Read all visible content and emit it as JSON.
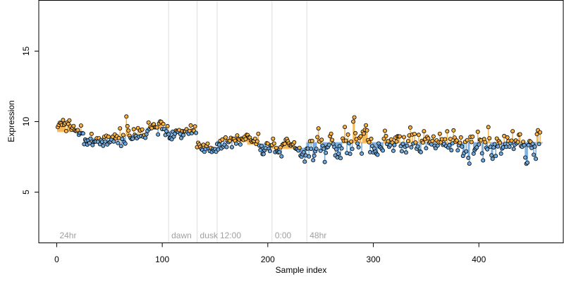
{
  "chart_data": {
    "type": "scatter",
    "title": "",
    "xlabel": "Sample index",
    "ylabel": "Expression",
    "xlim": [
      -17,
      480
    ],
    "ylim": [
      1.4,
      18.6
    ],
    "x_ticks": [
      0,
      100,
      200,
      300,
      400
    ],
    "y_ticks": [
      5,
      10,
      15
    ],
    "grid": false,
    "legend": "none",
    "regions": [
      {
        "label": "24hr",
        "start": 0
      },
      {
        "label": "dawn",
        "start": 106
      },
      {
        "label": "dusk",
        "start": 133
      },
      {
        "label": "12:00",
        "start": 152
      },
      {
        "label": "0:00",
        "start": 204
      },
      {
        "label": "48hr",
        "start": 237
      }
    ],
    "region_boundaries": [
      106,
      133,
      152,
      204,
      237
    ],
    "colors": {
      "above": "#f5b041",
      "below": "#6fa8dc",
      "segment_above": "#f0a830",
      "segment_below": "#5b8fd6",
      "boundary": "#dddddd",
      "axis": "#000000",
      "region_label": "#a0a0a0"
    },
    "segments": [
      {
        "start": 1,
        "end": 25,
        "level": 9.3
      },
      {
        "start": 26,
        "end": 64,
        "level": 8.8
      },
      {
        "start": 65,
        "end": 84,
        "level": 9.0
      },
      {
        "start": 85,
        "end": 105,
        "level": 9.5
      },
      {
        "start": 106,
        "end": 132,
        "level": 9.3
      },
      {
        "start": 133,
        "end": 151,
        "level": 8.1
      },
      {
        "start": 152,
        "end": 180,
        "level": 8.6
      },
      {
        "start": 181,
        "end": 203,
        "level": 8.4
      },
      {
        "start": 204,
        "end": 236,
        "level": 8.1
      },
      {
        "start": 237,
        "end": 460,
        "level": 8.5
      }
    ],
    "series": [
      {
        "values": [
          9.61,
          9.77,
          9.92,
          9.88,
          9.76,
          10.11,
          9.77,
          9.87,
          9.33,
          9.94,
          9.83,
          10.09,
          9.66,
          9.43,
          9.55,
          9.69,
          9.39,
          9.34,
          9.34,
          9.4,
          9.06,
          9.19,
          9.72,
          9.17,
          9.16,
          8.4,
          8.73,
          8.64,
          8.37,
          8.67,
          8.48,
          8.79,
          9.13,
          8.34,
          8.56,
          8.58,
          8.59,
          8.82,
          8.58,
          8.82,
          8.4,
          8.69,
          8.57,
          8.29,
          8.92,
          8.59,
          9.0,
          8.38,
          8.93,
          8.53,
          8.58,
          8.72,
          8.93,
          8.59,
          9.09,
          8.81,
          8.96,
          8.48,
          8.83,
          9.52,
          8.27,
          8.77,
          9.05,
          8.54,
          8.44,
          10.36,
          9.68,
          9.36,
          9.0,
          8.84,
          8.76,
          8.79,
          9.46,
          9.06,
          8.98,
          8.82,
          9.54,
          8.94,
          9.37,
          8.98,
          9.44,
          8.93,
          9.04,
          8.85,
          9.1,
          9.34,
          9.94,
          9.49,
          9.62,
          9.54,
          9.77,
          9.81,
          9.6,
          9.6,
          9.59,
          9.09,
          9.87,
          10.01,
          9.98,
          9.47,
          9.83,
          9.47,
          9.05,
          9.32,
          9.68,
          9.1,
          8.82,
          8.84,
          8.75,
          9.29,
          8.94,
          9.14,
          9.36,
          9.31,
          9.27,
          9.4,
          9.13,
          8.84,
          9.33,
          9.04,
          9.31,
          9.31,
          9.46,
          9.26,
          9.14,
          9.34,
          9.73,
          9.18,
          9.38,
          9.35,
          9.66,
          9.2,
          8.19,
          8.5,
          8.37,
          8.21,
          8.06,
          7.99,
          8.36,
          7.86,
          8.06,
          8.27,
          8.44,
          8.08,
          7.91,
          8.14,
          7.85,
          8.06,
          7.95,
          8.05,
          7.86,
          8.41,
          8.03,
          8.36,
          8.64,
          8.1,
          8.73,
          8.23,
          8.35,
          8.88,
          8.2,
          8.62,
          8.55,
          8.64,
          8.85,
          8.19,
          8.78,
          8.78,
          8.64,
          8.44,
          9.02,
          8.77,
          8.72,
          8.38,
          8.8,
          8.76,
          8.7,
          8.92,
          8.76,
          9.06,
          9.04,
          8.88,
          8.86,
          8.66,
          8.57,
          8.64,
          8.63,
          8.79,
          8.41,
          8.6,
          9.14,
          8.3,
          7.98,
          8.27,
          7.7,
          7.7,
          7.97,
          8.12,
          8.47,
          8.44,
          8.08,
          7.91,
          8.31,
          8.34,
          8.79,
          8.45,
          7.84,
          8.14,
          7.88,
          7.81,
          7.84,
          8.18,
          7.54,
          8.37,
          8.43,
          8.43,
          8.72,
          8.78,
          8.61,
          8.45,
          8.32,
          8.3,
          8.39,
          8.41,
          8.53,
          8.11,
          8.07,
          8.03,
          7.95,
          8.14,
          7.59,
          7.51,
          7.69,
          7.83,
          7.16,
          7.6,
          8.09,
          8.09,
          7.53,
          8.61,
          8.07,
          8.63,
          7.26,
          7.58,
          7.9,
          8.07,
          8.9,
          9.52,
          8.59,
          7.93,
          8.71,
          8.29,
          8.08,
          7.14,
          7.79,
          8.16,
          8.2,
          8.35,
          8.97,
          9.14,
          8.7,
          8.42,
          8.2,
          7.6,
          8.04,
          7.46,
          7.72,
          8.26,
          7.41,
          8.1,
          8.8,
          8.64,
          9.62,
          8.65,
          7.77,
          9.08,
          8.46,
          7.71,
          8.59,
          8.06,
          10.0,
          10.3,
          9.18,
          8.76,
          8.45,
          8.18,
          8.86,
          8.96,
          7.73,
          9.29,
          9.15,
          9.42,
          9.74,
          9.38,
          8.69,
          8.54,
          7.83,
          8.78,
          8.27,
          7.81,
          8.09,
          7.87,
          7.71,
          7.65,
          8.45,
          8.22,
          8.16,
          8.05,
          7.95,
          8.79,
          9.35,
          8.98,
          8.42,
          8.61,
          8.21,
          8.33,
          8.74,
          8.51,
          7.93,
          8.34,
          8.87,
          8.59,
          8.96,
          8.95,
          8.95,
          8.26,
          7.9,
          8.42,
          8.9,
          8.21,
          7.81,
          8.29,
          8.62,
          9.02,
          9.58,
          8.18,
          9.08,
          8.45,
          9.12,
          8.52,
          8.08,
          8.24,
          9.06,
          7.9,
          7.84,
          8.63,
          8.51,
          9.32,
          8.76,
          8.11,
          8.92,
          8.81,
          8.48,
          8.55,
          8.39,
          8.63,
          8.95,
          8.29,
          8.11,
          8.67,
          8.3,
          8.54,
          9.14,
          8.53,
          8.75,
          8.35,
          8.43,
          8.75,
          8.27,
          9.31,
          8.17,
          8.33,
          8.77,
          7.97,
          8.46,
          9.38,
          8.87,
          8.56,
          8.66,
          7.96,
          8.32,
          8.5,
          8.88,
          8.23,
          7.57,
          7.76,
          8.56,
          7.89,
          8.69,
          7.43,
          7.02,
          8.92,
          8.55,
          8.93,
          7.73,
          7.98,
          8.09,
          8.17,
          9.28,
          8.38,
          8.72,
          8.68,
          7.75,
          7.25,
          8.76,
          8.54,
          8.15,
          8.04,
          9.61,
          8.82,
          8.21,
          7.61,
          7.36,
          8.17,
          8.4,
          7.56,
          8.8,
          8.24,
          8.61,
          8.5,
          7.73,
          8.09,
          8.17,
          8.98,
          8.42,
          8.21,
          8.88,
          8.62,
          8.22,
          8.47,
          8.65,
          9.32,
          8.06,
          8.36,
          8.66,
          8.46,
          8.55,
          9.07,
          9.1,
          8.27,
          8.21,
          8.57,
          8.33,
          7.45,
          7.01,
          7.09,
          8.33,
          8.62,
          8.57,
          8.13,
          8.42,
          7.65,
          8.23,
          7.36,
          9.11,
          9.39,
          8.41,
          9.24
        ]
      }
    ]
  }
}
